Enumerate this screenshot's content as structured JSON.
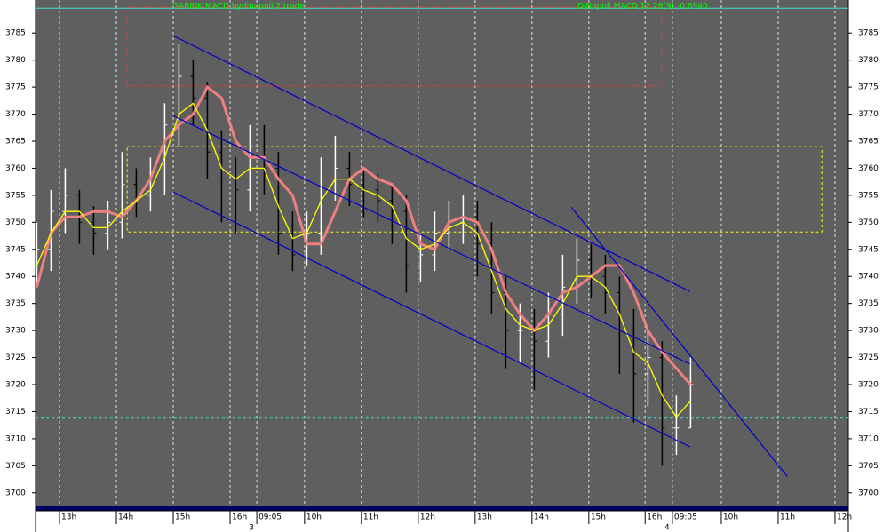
{
  "chart_data": {
    "type": "ohlc",
    "title": "GABRIK MACD bydinapoli 2 trader",
    "subtitle": "DiNapoli MACD 12 26(9) -0.6940",
    "xlim": [
      -0.422,
      13.875
    ],
    "ylim": [
      3697.5,
      3789.8
    ],
    "yticks": [
      3700,
      3705,
      3710,
      3715,
      3720,
      3725,
      3730,
      3735,
      3740,
      3745,
      3750,
      3755,
      3760,
      3765,
      3770,
      3775,
      3780,
      3785
    ],
    "xticks": [
      {
        "value": 0,
        "label": "13h"
      },
      {
        "value": 1,
        "label": "14h"
      },
      {
        "value": 2,
        "label": "15h"
      },
      {
        "value": 3,
        "label": "16h"
      },
      {
        "value": 3.47,
        "label": "09:05"
      },
      {
        "value": 4.31,
        "label": "10h"
      },
      {
        "value": 5.31,
        "label": "11h"
      },
      {
        "value": 6.31,
        "label": "12h"
      },
      {
        "value": 7.31,
        "label": "13h"
      },
      {
        "value": 8.31,
        "label": "14h"
      },
      {
        "value": 9.31,
        "label": "15h"
      },
      {
        "value": 10.3,
        "label": "16h"
      },
      {
        "value": 10.78,
        "label": "09:05"
      },
      {
        "value": 11.64,
        "label": "10h"
      },
      {
        "value": 12.64,
        "label": "11h"
      },
      {
        "value": 13.64,
        "label": "12h"
      }
    ],
    "grid": true,
    "up_color": "#ffffff",
    "down_color": "#000000",
    "x": [
      -0.4,
      -0.15,
      0.1,
      0.35,
      0.6,
      0.85,
      1.1,
      1.35,
      1.6,
      1.85,
      2.1,
      2.35,
      2.6,
      2.85,
      3.1,
      3.35,
      3.6,
      3.85,
      4.1,
      4.35,
      4.6,
      4.85,
      5.1,
      5.35,
      5.6,
      5.85,
      6.1,
      6.35,
      6.6,
      6.85,
      7.1,
      7.35,
      7.6,
      7.85,
      8.1,
      8.35,
      8.6,
      8.85,
      9.1,
      9.35,
      9.6,
      9.85,
      10.1,
      10.35,
      10.6,
      10.85,
      11.1
    ],
    "open": [
      3742,
      3745,
      3752,
      3755,
      3750,
      3748,
      3750,
      3757,
      3755,
      3758,
      3768,
      3777,
      3773,
      3763,
      3758,
      3756,
      3764,
      3760,
      3748,
      3744,
      3748,
      3758,
      3760,
      3757,
      3756,
      3754,
      3752,
      3742,
      3744,
      3748,
      3750,
      3751,
      3746,
      3737,
      3730,
      3730,
      3728,
      3733,
      3738,
      3743,
      3740,
      3737,
      3730,
      3722,
      3725,
      3712,
      3712
    ],
    "high": [
      3750,
      3756,
      3760,
      3756,
      3753,
      3754,
      3763,
      3760,
      3762,
      3772,
      3783,
      3780,
      3776,
      3767,
      3762,
      3768,
      3768,
      3763,
      3752,
      3752,
      3762,
      3766,
      3763,
      3760,
      3759,
      3757,
      3755,
      3748,
      3752,
      3754,
      3755,
      3754,
      3750,
      3740,
      3735,
      3734,
      3737,
      3744,
      3747,
      3746,
      3744,
      3740,
      3734,
      3730,
      3728,
      3718,
      3725
    ],
    "low": [
      3738,
      3741,
      3748,
      3746,
      3744,
      3745,
      3747,
      3751,
      3752,
      3755,
      3764,
      3768,
      3758,
      3750,
      3748,
      3752,
      3755,
      3744,
      3741,
      3742,
      3744,
      3754,
      3753,
      3751,
      3750,
      3746,
      3737,
      3739,
      3741,
      3745,
      3746,
      3740,
      3733,
      3723,
      3724,
      3719,
      3725,
      3729,
      3735,
      3736,
      3733,
      3722,
      3713,
      3716,
      3705,
      3707,
      3712
    ],
    "close": [
      3745,
      3752,
      3755,
      3750,
      3748,
      3750,
      3757,
      3755,
      3758,
      3768,
      3777,
      3773,
      3763,
      3758,
      3756,
      3764,
      3760,
      3748,
      3744,
      3748,
      3758,
      3760,
      3757,
      3756,
      3754,
      3752,
      3742,
      3744,
      3748,
      3750,
      3751,
      3746,
      3737,
      3730,
      3730,
      3728,
      3733,
      3738,
      3743,
      3740,
      3737,
      3730,
      3722,
      3725,
      3712,
      3712,
      3720
    ],
    "lines": [
      {
        "color": "#f08080",
        "width": 3,
        "values": [
          3738,
          3748,
          3751,
          3751,
          3752,
          3752,
          3751,
          3754,
          3758,
          3765,
          3768,
          3770,
          3775,
          3773,
          3765,
          3762,
          3762,
          3758,
          3755,
          3746,
          3746,
          3752,
          3758,
          3760,
          3758,
          3757,
          3754,
          3746,
          3745,
          3750,
          3751,
          3750,
          3745,
          3737,
          3733,
          3730,
          3733,
          3737,
          3738,
          3740,
          3742,
          3742,
          3737,
          3730,
          3726,
          3723,
          3720
        ]
      },
      {
        "color": "#ffff00",
        "width": 1.3,
        "values": [
          3742,
          3748,
          3752,
          3752,
          3749,
          3749,
          3752,
          3754,
          3756,
          3762,
          3770,
          3772,
          3767,
          3760,
          3758,
          3760,
          3760,
          3753,
          3747,
          3748,
          3754,
          3758,
          3758,
          3756,
          3755,
          3753,
          3747,
          3745,
          3746,
          3749,
          3750,
          3748,
          3741,
          3734,
          3731,
          3730,
          3731,
          3735,
          3740,
          3740,
          3738,
          3733,
          3726,
          3724,
          3718,
          3714,
          3717
        ]
      }
    ],
    "trendlines": [
      {
        "color": "#0000cc",
        "x": [
          2.0,
          11.09
        ],
        "y": [
          3784.5,
          3737.2
        ]
      },
      {
        "color": "#0000cc",
        "x": [
          2.0,
          11.09
        ],
        "y": [
          3769.7,
          3723.8
        ]
      },
      {
        "color": "#0000cc",
        "x": [
          2.0,
          11.09
        ],
        "y": [
          3755.6,
          3708.5
        ]
      },
      {
        "color": "#0000cc",
        "x": [
          9.0,
          12.8
        ],
        "y": [
          3752.8,
          3703.0
        ]
      }
    ],
    "zones": [
      {
        "color": "#ff3030",
        "x": [
          1.19,
          10.59
        ],
        "y": [
          3775.2,
          3789.8
        ]
      },
      {
        "color": "#ffff00",
        "x": [
          1.19,
          13.41
        ],
        "y": [
          3748.2,
          3764
        ]
      }
    ],
    "hlines": [
      {
        "color": "#40e0d0",
        "value": 3713.8
      },
      {
        "color": "#40e0d0",
        "value": 3789.6
      }
    ],
    "annotations": [
      {
        "text": "3",
        "x": 3.33
      },
      {
        "text": "4",
        "x": 10.64
      }
    ]
  }
}
